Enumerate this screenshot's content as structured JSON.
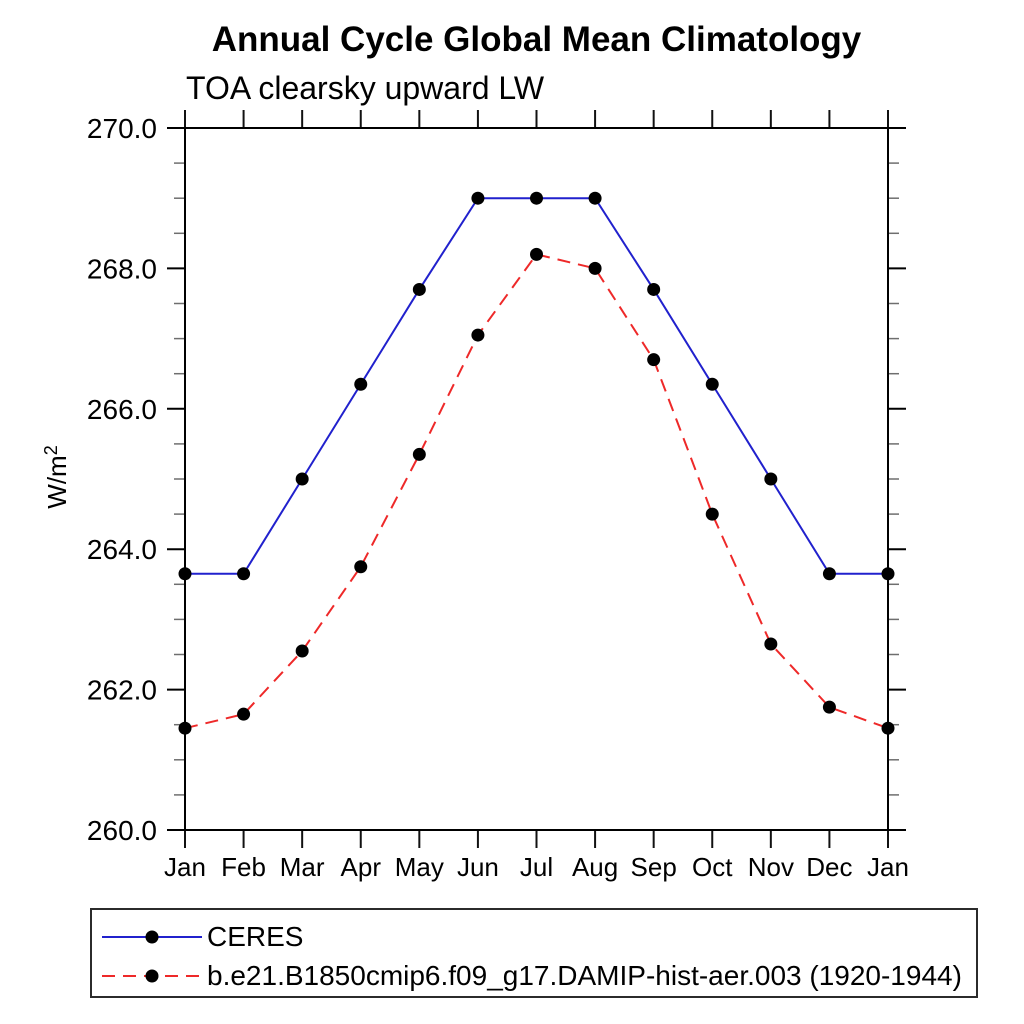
{
  "header": {
    "title": "Annual Cycle Global Mean Climatology",
    "subtitle": "TOA clearsky upward LW"
  },
  "axes": {
    "y_label_base": "W/m",
    "y_label_sup": "2",
    "y_tick_labels": [
      "260.0",
      "262.0",
      "264.0",
      "266.0",
      "268.0",
      "270.0"
    ],
    "x_tick_labels": [
      "Jan",
      "Feb",
      "Mar",
      "Apr",
      "May",
      "Jun",
      "Jul",
      "Aug",
      "Sep",
      "Oct",
      "Nov",
      "Dec",
      "Jan"
    ]
  },
  "chart_data": {
    "type": "line",
    "title": "Annual Cycle Global Mean Climatology",
    "subtitle": "TOA clearsky upward LW",
    "xlabel": "",
    "ylabel": "W/m²",
    "ylim": [
      260.0,
      270.0
    ],
    "y_major_ticks": [
      260,
      262,
      264,
      266,
      268,
      270
    ],
    "y_minor_step": 0.5,
    "grid": false,
    "legend_position": "bottom-left-box",
    "categories": [
      "Jan",
      "Feb",
      "Mar",
      "Apr",
      "May",
      "Jun",
      "Jul",
      "Aug",
      "Sep",
      "Oct",
      "Nov",
      "Dec",
      "Jan"
    ],
    "series": [
      {
        "name": "CERES",
        "color": "#2121cd",
        "line_style": "solid",
        "marker": "filled-circle",
        "marker_color": "#000000",
        "values": [
          263.65,
          263.65,
          265.0,
          266.35,
          267.7,
          269.0,
          269.0,
          269.0,
          267.7,
          266.35,
          265.0,
          263.65,
          263.65
        ]
      },
      {
        "name": "b.e21.B1850cmip6.f09_g17.DAMIP-hist-aer.003 (1920-1944)",
        "color": "#ee2929",
        "line_style": "dashed",
        "marker": "filled-circle",
        "marker_color": "#000000",
        "values": [
          261.45,
          261.65,
          262.55,
          263.75,
          265.35,
          267.05,
          268.2,
          268.0,
          266.7,
          264.5,
          262.65,
          261.75,
          261.45
        ]
      }
    ]
  }
}
